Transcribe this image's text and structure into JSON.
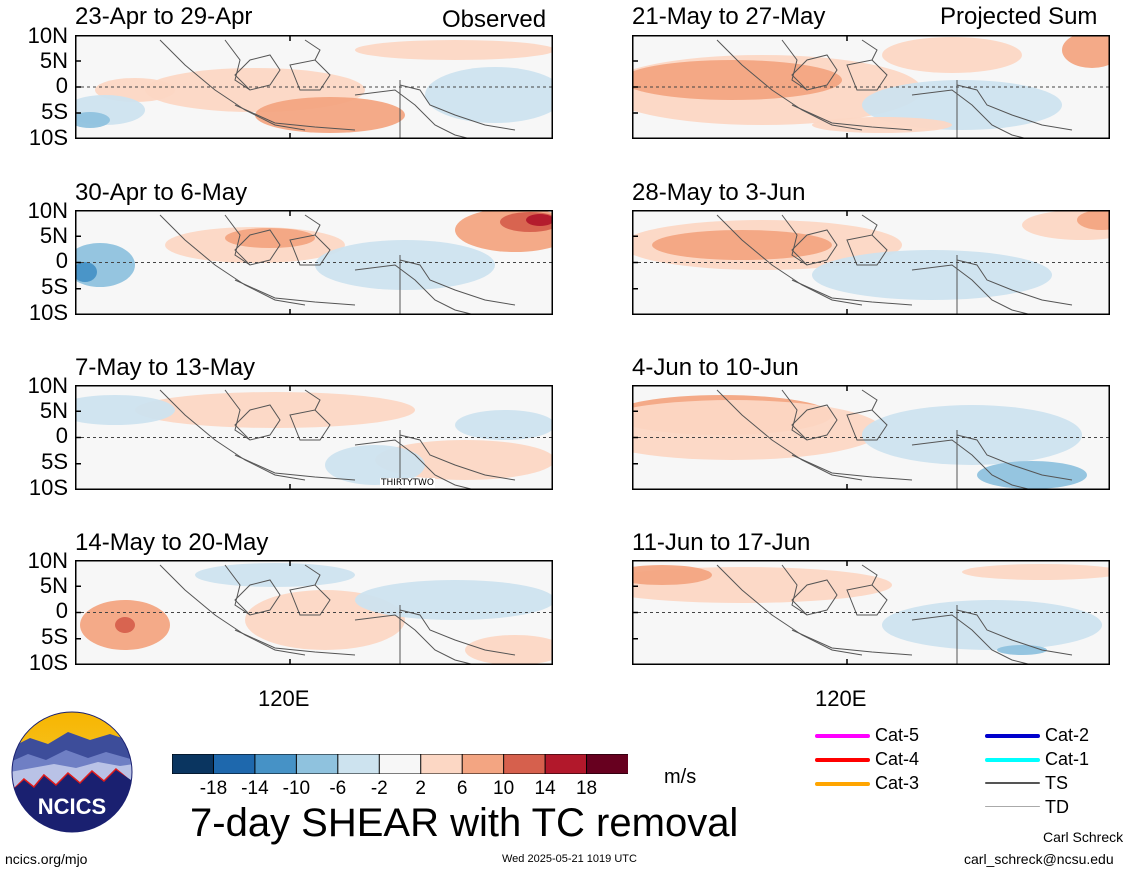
{
  "left_column_label": "Observed",
  "right_column_label": "Projected Sum",
  "lat_labels": [
    "10N",
    "5N",
    "0",
    "5S",
    "10S"
  ],
  "lon_label": "120E",
  "panels": [
    {
      "title": "23-Apr to 29-Apr"
    },
    {
      "title": "30-Apr to 6-May"
    },
    {
      "title": "7-May to 13-May",
      "annotation": "THIRTYTWO"
    },
    {
      "title": "14-May to 20-May"
    },
    {
      "title": "21-May to 27-May"
    },
    {
      "title": "28-May to 3-Jun"
    },
    {
      "title": "4-Jun to 10-Jun"
    },
    {
      "title": "11-Jun to 17-Jun"
    }
  ],
  "colorbar": {
    "ticks": [
      "-18",
      "-14",
      "-10",
      "-6",
      "-2",
      "2",
      "6",
      "10",
      "14",
      "18"
    ],
    "colors": [
      "#0a3560",
      "#1e68ad",
      "#4692c6",
      "#8fc2de",
      "#cde3ef",
      "#f7f7f7",
      "#fcd7c4",
      "#f3a582",
      "#d6604d",
      "#b2182b",
      "#67001f"
    ],
    "unit": "m/s"
  },
  "legend": [
    {
      "label": "Cat-5",
      "color": "#ff00ff"
    },
    {
      "label": "Cat-4",
      "color": "#ff0000"
    },
    {
      "label": "Cat-3",
      "color": "#ffa500"
    },
    {
      "label": "Cat-2",
      "color": "#0000cc"
    },
    {
      "label": "Cat-1",
      "color": "#00ffff"
    },
    {
      "label": "TS",
      "color": "#555555"
    },
    {
      "label": "TD",
      "color": "#aaaaaa"
    }
  ],
  "logo_text": "NCICS",
  "main_title": "7-day SHEAR with TC removal",
  "url": "ncics.org/mjo",
  "timestamp": "Wed 2025-05-21 1019 UTC",
  "author": "Carl Schreck",
  "email": "carl_schreck@ncsu.edu"
}
